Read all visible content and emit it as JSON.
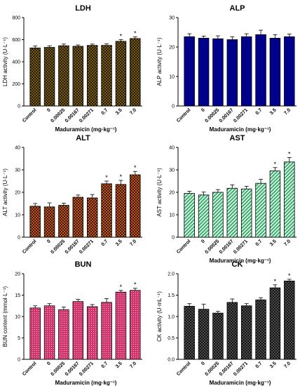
{
  "chart_data": [
    {
      "type": "bar",
      "title": "LDH",
      "ylabel": "LDH activity (U·L⁻¹)",
      "xlabel": "Maduramicin (mg·kg⁻¹)",
      "categories": [
        "Control",
        "0",
        "0.00025",
        "0.00167",
        "0.00271",
        "0.7",
        "3.5",
        "7.0"
      ],
      "values": [
        525,
        530,
        545,
        540,
        548,
        548,
        585,
        610
      ],
      "errors": [
        18,
        15,
        15,
        12,
        12,
        15,
        15,
        15
      ],
      "significant": [
        false,
        false,
        false,
        false,
        false,
        false,
        true,
        true
      ],
      "significance_marker": "*",
      "ylim": [
        0,
        800
      ],
      "yticks": [
        0,
        200,
        400,
        600,
        800
      ],
      "pattern": "crosshatch",
      "color": "#8B6914"
    },
    {
      "type": "bar",
      "title": "ALP",
      "ylabel": "ALP activity (U·L⁻¹)",
      "xlabel": "Maduramicin (mg·kg⁻¹)",
      "categories": [
        "Control",
        "0",
        "0.00025",
        "0.00167",
        "0.00271",
        "0.7",
        "3.5",
        "7.0"
      ],
      "values": [
        23.5,
        23.0,
        22.8,
        22.5,
        23.5,
        24.2,
        23.0,
        23.5
      ],
      "errors": [
        1.0,
        0.7,
        1.0,
        1.0,
        1.0,
        1.5,
        1.2,
        0.9
      ],
      "significant": [
        false,
        false,
        false,
        false,
        false,
        false,
        false,
        false
      ],
      "significance_marker": "*",
      "ylim": [
        0,
        30
      ],
      "yticks": [
        0,
        10,
        20,
        30
      ],
      "pattern": "solid",
      "color": "#00008B"
    },
    {
      "type": "bar",
      "title": "ALT",
      "ylabel": "ALT activity (U·L⁻¹)",
      "xlabel": "",
      "categories": [
        "Control",
        "0",
        "0.00025",
        "0.00167",
        "0.00271",
        "0.7",
        "3.5",
        "7.0"
      ],
      "values": [
        13.8,
        13.5,
        14.2,
        17.8,
        17.5,
        23.8,
        23.5,
        27.8
      ],
      "errors": [
        1.2,
        1.8,
        1.0,
        1.0,
        1.5,
        1.2,
        1.8,
        1.5
      ],
      "significant": [
        false,
        false,
        false,
        false,
        false,
        true,
        true,
        true
      ],
      "significance_marker": "*",
      "ylim": [
        0,
        40
      ],
      "yticks": [
        0,
        10,
        20,
        30,
        40
      ],
      "pattern": "crosshatch",
      "color": "#E0601A"
    },
    {
      "type": "bar",
      "title": "AST",
      "ylabel": "AST activity (U·L⁻¹)",
      "xlabel": "Maduramicin (mg·kg⁻¹)",
      "categories": [
        "Control",
        "0",
        "0.00025",
        "0.00167",
        "0.00271",
        "0.7",
        "3.5",
        "7.0"
      ],
      "values": [
        19.5,
        18.8,
        20.0,
        21.8,
        21.5,
        24.0,
        29.5,
        33.5
      ],
      "errors": [
        1.0,
        1.3,
        1.2,
        1.5,
        1.2,
        1.8,
        1.5,
        2.0
      ],
      "significant": [
        false,
        false,
        false,
        false,
        false,
        false,
        true,
        true
      ],
      "significance_marker": "*",
      "ylim": [
        0,
        40
      ],
      "yticks": [
        0,
        10,
        20,
        30,
        40
      ],
      "pattern": "diagonal",
      "color": "#3CB371"
    },
    {
      "type": "bar",
      "title": "BUN",
      "ylabel": "BUN content (mmol·L⁻¹)",
      "xlabel": "Maduramicin (mg·kg⁻¹)",
      "categories": [
        "Control",
        "0",
        "0.00025",
        "0.00167",
        "0.00271",
        "0.7",
        "3.5",
        "7.0"
      ],
      "values": [
        12.0,
        12.5,
        11.6,
        13.5,
        12.3,
        13.3,
        15.7,
        16.1
      ],
      "errors": [
        0.5,
        0.5,
        0.6,
        0.5,
        0.5,
        0.9,
        0.4,
        0.5
      ],
      "significant": [
        false,
        false,
        false,
        false,
        false,
        false,
        true,
        true
      ],
      "significance_marker": "*",
      "ylim": [
        0,
        20
      ],
      "yticks": [
        0,
        5,
        10,
        15,
        20
      ],
      "pattern": "dots",
      "color": "#D6336C"
    },
    {
      "type": "bar",
      "title": "CK",
      "ylabel": "CK activity (U·mL⁻¹)",
      "xlabel": "Maduramicin (mg·kg⁻¹)",
      "categories": [
        "Control",
        "0",
        "0.00025",
        "0.00167",
        "0.00271",
        "0.7",
        "3.5",
        "7.0"
      ],
      "values": [
        1.24,
        1.17,
        1.08,
        1.33,
        1.25,
        1.39,
        1.67,
        1.83
      ],
      "errors": [
        0.06,
        0.12,
        0.04,
        0.08,
        0.05,
        0.05,
        0.07,
        0.04
      ],
      "significant": [
        false,
        false,
        false,
        false,
        false,
        false,
        true,
        true
      ],
      "significance_marker": "*",
      "ylim": [
        0,
        2.0
      ],
      "yticks": [
        0.0,
        0.5,
        1.0,
        1.5,
        2.0
      ],
      "pattern": "crosshatch",
      "color": "#555555"
    }
  ]
}
